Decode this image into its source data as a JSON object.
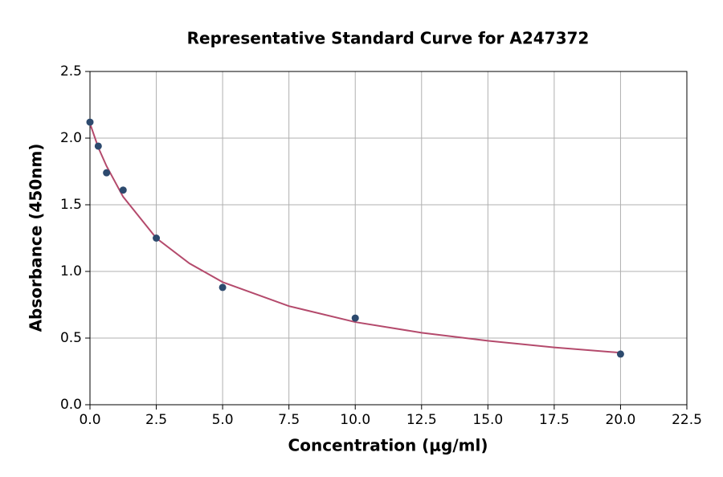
{
  "chart_data": {
    "type": "scatter",
    "title": "Representative Standard Curve for A247372",
    "x_label": "Concentration (μg/ml)",
    "y_label": "Absorbance (450nm)",
    "xlim": [
      0,
      22.5
    ],
    "ylim": [
      0,
      2.5
    ],
    "xticks": [
      {
        "value": 0,
        "label": "0.0"
      },
      2.5,
      {
        "value": 5,
        "label": "5.0"
      },
      7.5,
      {
        "value": 10,
        "label": "10.0"
      },
      12.5,
      {
        "value": 15,
        "label": "15.0"
      },
      17.5,
      {
        "value": 20,
        "label": "20.0"
      },
      22.5
    ],
    "yticks": [
      {
        "value": 0,
        "label": "0.0"
      },
      0.5,
      {
        "value": 1,
        "label": "1.0"
      },
      1.5,
      {
        "value": 2,
        "label": "2.0"
      },
      2.5
    ],
    "grid": true,
    "series": [
      {
        "type": "scatter",
        "color": "#2d4a6e",
        "x": [
          0,
          0.3125,
          0.625,
          1.25,
          2.5,
          5,
          10,
          20
        ],
        "values": [
          2.12,
          1.94,
          1.74,
          1.61,
          1.25,
          0.88,
          0.65,
          0.38
        ]
      },
      {
        "type": "line",
        "color": "#b44a6c",
        "x": [
          0,
          0.3125,
          0.625,
          1.25,
          2.5,
          3.75,
          5,
          7.5,
          10,
          12.5,
          15,
          17.5,
          20
        ],
        "values": [
          2.11,
          1.93,
          1.79,
          1.56,
          1.25,
          1.06,
          0.92,
          0.74,
          0.62,
          0.54,
          0.48,
          0.43,
          0.39
        ]
      }
    ]
  }
}
